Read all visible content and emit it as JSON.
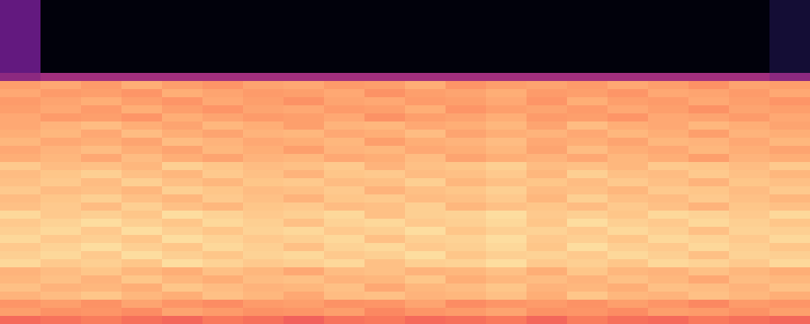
{
  "chart_data": {
    "type": "heatmap",
    "color": "magma",
    "tick_labels": false,
    "color_range": [
      0,
      1
    ],
    "cells": [
      [
        0.3,
        0.02,
        0.02,
        0.02,
        0.02,
        0.02,
        0.02,
        0.02,
        0.02,
        0.02,
        0.02,
        0.02,
        0.02,
        0.02,
        0.02,
        0.02,
        0.02,
        0.02,
        0.02,
        0.1
      ],
      [
        0.3,
        0.02,
        0.02,
        0.02,
        0.02,
        0.02,
        0.02,
        0.02,
        0.02,
        0.02,
        0.02,
        0.02,
        0.02,
        0.02,
        0.02,
        0.02,
        0.02,
        0.02,
        0.02,
        0.1
      ],
      [
        0.3,
        0.02,
        0.02,
        0.02,
        0.02,
        0.02,
        0.02,
        0.02,
        0.02,
        0.02,
        0.02,
        0.02,
        0.02,
        0.02,
        0.02,
        0.02,
        0.02,
        0.02,
        0.02,
        0.1
      ],
      [
        0.3,
        0.02,
        0.02,
        0.02,
        0.02,
        0.02,
        0.02,
        0.02,
        0.02,
        0.02,
        0.02,
        0.02,
        0.02,
        0.02,
        0.02,
        0.02,
        0.02,
        0.02,
        0.02,
        0.1
      ],
      [
        0.3,
        0.02,
        0.02,
        0.02,
        0.02,
        0.02,
        0.02,
        0.02,
        0.02,
        0.02,
        0.02,
        0.02,
        0.02,
        0.02,
        0.02,
        0.02,
        0.02,
        0.02,
        0.02,
        0.1
      ],
      [
        0.3,
        0.02,
        0.02,
        0.02,
        0.02,
        0.02,
        0.02,
        0.02,
        0.02,
        0.02,
        0.02,
        0.02,
        0.02,
        0.02,
        0.02,
        0.02,
        0.02,
        0.02,
        0.02,
        0.1
      ],
      [
        0.3,
        0.02,
        0.02,
        0.02,
        0.02,
        0.02,
        0.02,
        0.02,
        0.02,
        0.02,
        0.02,
        0.02,
        0.02,
        0.02,
        0.02,
        0.02,
        0.02,
        0.02,
        0.02,
        0.1
      ],
      [
        0.3,
        0.02,
        0.02,
        0.02,
        0.02,
        0.02,
        0.02,
        0.02,
        0.02,
        0.02,
        0.02,
        0.02,
        0.02,
        0.02,
        0.02,
        0.02,
        0.02,
        0.02,
        0.02,
        0.1
      ],
      [
        0.3,
        0.02,
        0.02,
        0.02,
        0.02,
        0.02,
        0.02,
        0.02,
        0.02,
        0.02,
        0.02,
        0.02,
        0.02,
        0.02,
        0.02,
        0.02,
        0.02,
        0.02,
        0.02,
        0.1
      ],
      [
        0.4,
        0.45,
        0.45,
        0.45,
        0.45,
        0.45,
        0.45,
        0.45,
        0.45,
        0.45,
        0.45,
        0.45,
        0.45,
        0.45,
        0.45,
        0.45,
        0.45,
        0.45,
        0.45,
        0.4
      ],
      [
        0.8,
        0.82,
        0.79,
        0.83,
        0.8,
        0.78,
        0.81,
        0.82,
        0.79,
        0.8,
        0.83,
        0.78,
        0.8,
        0.81,
        0.79,
        0.82,
        0.8,
        0.77,
        0.81,
        0.8
      ],
      [
        0.82,
        0.79,
        0.8,
        0.78,
        0.83,
        0.81,
        0.79,
        0.8,
        0.82,
        0.77,
        0.8,
        0.81,
        0.83,
        0.79,
        0.8,
        0.78,
        0.82,
        0.81,
        0.79,
        0.82
      ],
      [
        0.79,
        0.81,
        0.83,
        0.8,
        0.78,
        0.82,
        0.8,
        0.77,
        0.81,
        0.82,
        0.79,
        0.8,
        0.82,
        0.78,
        0.83,
        0.8,
        0.79,
        0.82,
        0.8,
        0.78
      ],
      [
        0.8,
        0.82,
        0.79,
        0.83,
        0.8,
        0.78,
        0.81,
        0.82,
        0.79,
        0.8,
        0.83,
        0.78,
        0.8,
        0.81,
        0.79,
        0.82,
        0.8,
        0.77,
        0.81,
        0.8
      ],
      [
        0.82,
        0.79,
        0.8,
        0.78,
        0.83,
        0.81,
        0.79,
        0.8,
        0.82,
        0.77,
        0.8,
        0.81,
        0.83,
        0.79,
        0.8,
        0.78,
        0.82,
        0.81,
        0.79,
        0.82
      ],
      [
        0.82,
        0.84,
        0.86,
        0.83,
        0.81,
        0.85,
        0.83,
        0.8,
        0.84,
        0.85,
        0.82,
        0.83,
        0.85,
        0.81,
        0.86,
        0.83,
        0.82,
        0.85,
        0.83,
        0.81
      ],
      [
        0.83,
        0.85,
        0.82,
        0.86,
        0.83,
        0.81,
        0.84,
        0.85,
        0.82,
        0.83,
        0.86,
        0.81,
        0.83,
        0.84,
        0.82,
        0.85,
        0.83,
        0.8,
        0.84,
        0.83
      ],
      [
        0.85,
        0.82,
        0.83,
        0.81,
        0.86,
        0.84,
        0.82,
        0.83,
        0.85,
        0.8,
        0.83,
        0.84,
        0.86,
        0.82,
        0.83,
        0.81,
        0.85,
        0.84,
        0.82,
        0.85
      ],
      [
        0.82,
        0.84,
        0.86,
        0.83,
        0.81,
        0.85,
        0.83,
        0.8,
        0.84,
        0.85,
        0.82,
        0.83,
        0.85,
        0.81,
        0.86,
        0.83,
        0.82,
        0.85,
        0.83,
        0.81
      ],
      [
        0.83,
        0.85,
        0.82,
        0.86,
        0.83,
        0.81,
        0.84,
        0.85,
        0.82,
        0.83,
        0.86,
        0.81,
        0.83,
        0.84,
        0.82,
        0.85,
        0.83,
        0.8,
        0.84,
        0.83
      ],
      [
        0.89,
        0.86,
        0.87,
        0.85,
        0.9,
        0.88,
        0.86,
        0.87,
        0.89,
        0.84,
        0.87,
        0.88,
        0.9,
        0.86,
        0.87,
        0.85,
        0.89,
        0.88,
        0.86,
        0.89
      ],
      [
        0.86,
        0.88,
        0.9,
        0.87,
        0.85,
        0.89,
        0.87,
        0.84,
        0.88,
        0.89,
        0.86,
        0.87,
        0.89,
        0.85,
        0.9,
        0.87,
        0.86,
        0.89,
        0.87,
        0.85
      ],
      [
        0.87,
        0.89,
        0.86,
        0.9,
        0.87,
        0.85,
        0.88,
        0.89,
        0.86,
        0.87,
        0.9,
        0.85,
        0.87,
        0.88,
        0.86,
        0.89,
        0.87,
        0.84,
        0.88,
        0.87
      ],
      [
        0.89,
        0.86,
        0.87,
        0.85,
        0.9,
        0.88,
        0.86,
        0.87,
        0.89,
        0.84,
        0.87,
        0.88,
        0.9,
        0.86,
        0.87,
        0.85,
        0.89,
        0.88,
        0.86,
        0.89
      ],
      [
        0.86,
        0.88,
        0.9,
        0.87,
        0.85,
        0.89,
        0.87,
        0.84,
        0.88,
        0.89,
        0.86,
        0.87,
        0.89,
        0.85,
        0.9,
        0.87,
        0.86,
        0.89,
        0.87,
        0.85
      ],
      [
        0.87,
        0.89,
        0.86,
        0.9,
        0.87,
        0.85,
        0.88,
        0.89,
        0.86,
        0.87,
        0.9,
        0.85,
        0.87,
        0.88,
        0.86,
        0.89,
        0.87,
        0.84,
        0.88,
        0.87
      ],
      [
        0.92,
        0.89,
        0.9,
        0.88,
        0.93,
        0.91,
        0.89,
        0.9,
        0.92,
        0.87,
        0.9,
        0.91,
        0.93,
        0.89,
        0.9,
        0.88,
        0.92,
        0.91,
        0.89,
        0.92
      ],
      [
        0.89,
        0.91,
        0.93,
        0.9,
        0.88,
        0.92,
        0.9,
        0.87,
        0.91,
        0.92,
        0.89,
        0.9,
        0.92,
        0.88,
        0.93,
        0.9,
        0.89,
        0.92,
        0.9,
        0.88
      ],
      [
        0.9,
        0.92,
        0.89,
        0.93,
        0.9,
        0.88,
        0.91,
        0.92,
        0.89,
        0.9,
        0.93,
        0.88,
        0.9,
        0.91,
        0.89,
        0.92,
        0.9,
        0.87,
        0.91,
        0.9
      ],
      [
        0.92,
        0.89,
        0.9,
        0.88,
        0.93,
        0.91,
        0.89,
        0.9,
        0.92,
        0.87,
        0.9,
        0.91,
        0.93,
        0.89,
        0.9,
        0.88,
        0.92,
        0.91,
        0.89,
        0.92
      ],
      [
        0.89,
        0.91,
        0.93,
        0.9,
        0.88,
        0.92,
        0.9,
        0.87,
        0.91,
        0.92,
        0.89,
        0.9,
        0.92,
        0.88,
        0.93,
        0.9,
        0.89,
        0.92,
        0.9,
        0.88
      ],
      [
        0.9,
        0.92,
        0.89,
        0.93,
        0.9,
        0.88,
        0.91,
        0.92,
        0.89,
        0.9,
        0.93,
        0.88,
        0.9,
        0.91,
        0.89,
        0.92,
        0.9,
        0.87,
        0.91,
        0.9
      ],
      [
        0.92,
        0.89,
        0.9,
        0.88,
        0.93,
        0.91,
        0.89,
        0.9,
        0.92,
        0.87,
        0.9,
        0.91,
        0.93,
        0.89,
        0.9,
        0.88,
        0.92,
        0.91,
        0.89,
        0.92
      ],
      [
        0.84,
        0.86,
        0.88,
        0.85,
        0.83,
        0.87,
        0.85,
        0.82,
        0.86,
        0.87,
        0.84,
        0.85,
        0.87,
        0.83,
        0.88,
        0.85,
        0.84,
        0.87,
        0.85,
        0.83
      ],
      [
        0.85,
        0.87,
        0.84,
        0.88,
        0.85,
        0.83,
        0.86,
        0.87,
        0.84,
        0.85,
        0.88,
        0.83,
        0.85,
        0.86,
        0.84,
        0.87,
        0.85,
        0.82,
        0.86,
        0.85
      ],
      [
        0.87,
        0.84,
        0.85,
        0.83,
        0.88,
        0.86,
        0.84,
        0.85,
        0.87,
        0.82,
        0.85,
        0.86,
        0.88,
        0.84,
        0.85,
        0.83,
        0.87,
        0.86,
        0.84,
        0.87
      ],
      [
        0.84,
        0.86,
        0.88,
        0.85,
        0.83,
        0.87,
        0.85,
        0.82,
        0.86,
        0.87,
        0.84,
        0.85,
        0.87,
        0.83,
        0.88,
        0.85,
        0.84,
        0.87,
        0.85,
        0.83
      ],
      [
        0.78,
        0.8,
        0.77,
        0.81,
        0.78,
        0.76,
        0.79,
        0.8,
        0.77,
        0.78,
        0.81,
        0.76,
        0.78,
        0.79,
        0.77,
        0.8,
        0.78,
        0.75,
        0.79,
        0.78
      ],
      [
        0.8,
        0.77,
        0.78,
        0.76,
        0.81,
        0.79,
        0.77,
        0.78,
        0.8,
        0.75,
        0.78,
        0.79,
        0.81,
        0.77,
        0.78,
        0.76,
        0.8,
        0.79,
        0.77,
        0.8
      ],
      [
        0.69,
        0.71,
        0.73,
        0.7,
        0.68,
        0.72,
        0.7,
        0.67,
        0.71,
        0.72,
        0.69,
        0.7,
        0.72,
        0.68,
        0.73,
        0.7,
        0.69,
        0.72,
        0.7,
        0.68
      ]
    ]
  }
}
